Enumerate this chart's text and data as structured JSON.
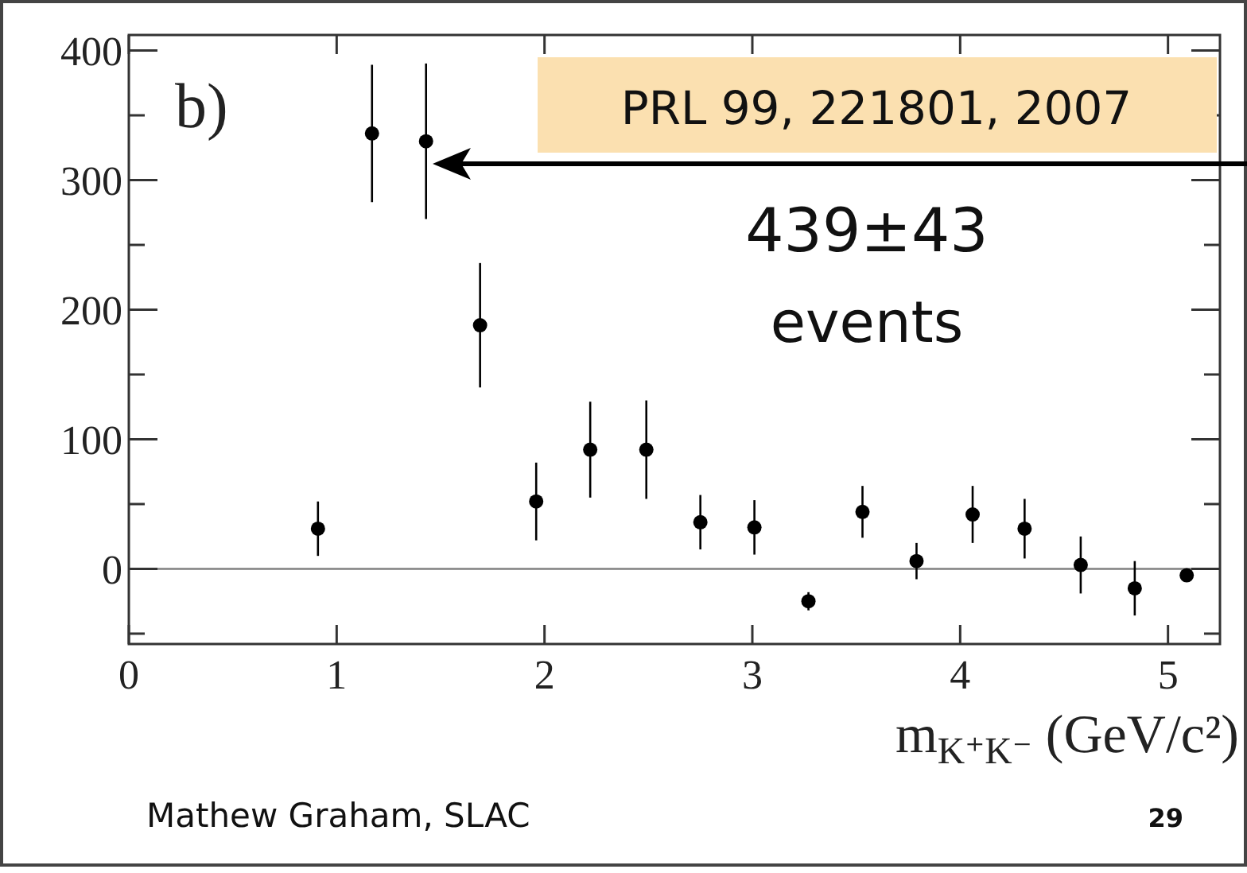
{
  "chart_data": {
    "type": "scatter",
    "x": [
      0.91,
      1.17,
      1.43,
      1.69,
      1.96,
      2.22,
      2.49,
      2.75,
      3.01,
      3.27,
      3.53,
      3.79,
      4.06,
      4.31,
      4.58,
      4.84,
      5.09
    ],
    "values": [
      31,
      336,
      330,
      188,
      52,
      92,
      92,
      36,
      32,
      -25,
      44,
      6,
      42,
      31,
      3,
      -15,
      -5
    ],
    "errors": [
      21,
      53,
      60,
      48,
      30,
      37,
      38,
      21,
      21,
      7,
      20,
      14,
      22,
      23,
      22,
      21,
      null
    ],
    "color": "#000000",
    "marker": "circle",
    "xlim": [
      0,
      5.25
    ],
    "ylim": [
      -58,
      412
    ],
    "xticks": [
      0,
      1,
      2,
      3,
      4,
      5
    ],
    "yticks": [
      {
        "value": -50,
        "label": null
      },
      0,
      {
        "value": 50,
        "label": null
      },
      100,
      {
        "value": 150,
        "label": null
      },
      200,
      {
        "value": 250,
        "label": null
      },
      300,
      {
        "value": 350,
        "label": null
      },
      400
    ],
    "xlabel": "m$_{K⁺K⁻}$ (GeV/c²)",
    "ref_lines": [
      {
        "axis": "y",
        "value": 0,
        "color": "#808080"
      }
    ],
    "annotations": [
      "b)",
      "PRL 99, 221801, 2007",
      "439±43 events",
      "Mathew Graham, SLAC",
      "29"
    ],
    "grid": false
  }
}
